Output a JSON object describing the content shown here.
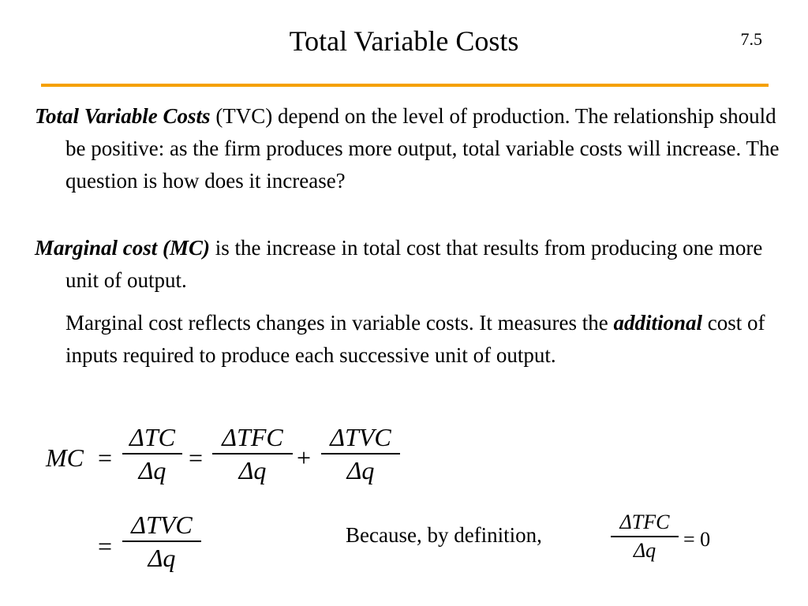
{
  "slide": {
    "title": "Total Variable Costs",
    "number": "7.5",
    "rule_color": "#f5a000"
  },
  "body": {
    "p1": {
      "term": "Total Variable Costs",
      "text": " (TVC) depend on the level of production.  The relationship should be positive: as the firm produces more output, total variable costs will increase. The question is how does it increase?"
    },
    "p2": {
      "term": "Marginal cost (MC)",
      "text": " is the increase in total cost that results from producing one more unit of output."
    },
    "p3": {
      "lead": "Marginal cost reflects changes in variable costs. It measures the ",
      "emphasis": "additional",
      "tail": " cost of inputs required to produce each successive unit of output."
    }
  },
  "equations": {
    "mc": "MC",
    "eq_sign": "=",
    "plus": "+",
    "delta_tc": "ΔTC",
    "delta_tfc": "ΔTFC",
    "delta_tvc": "ΔTVC",
    "delta_q": "Δq",
    "because_text": "Because, by definition,",
    "zero": "= 0"
  }
}
